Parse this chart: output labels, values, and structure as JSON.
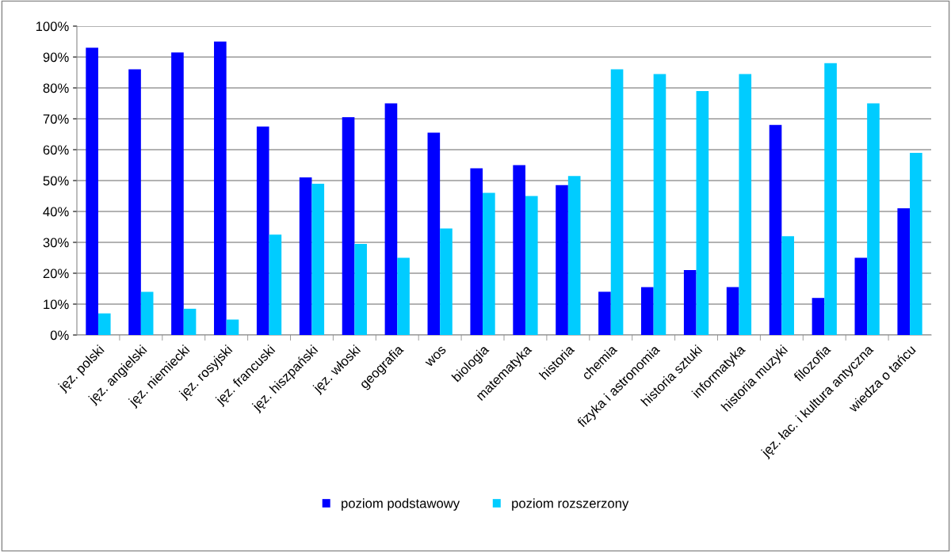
{
  "chart_data": {
    "type": "bar",
    "categories": [
      "jęz. polski",
      "jęz. angielski",
      "jęz. niemiecki",
      "jęz. rosyjski",
      "jęz. francuski",
      "jęz. hiszpański",
      "jęz. włoski",
      "geografia",
      "wos",
      "biologia",
      "matematyka",
      "historia",
      "chemia",
      "fizyka i astronomia",
      "historia sztuki",
      "informatyka",
      "historia muzyki",
      "filozofia",
      "jęz. łac. i kultura antyczna",
      "wiedza o tańcu"
    ],
    "series": [
      {
        "name": "poziom podstawowy",
        "color": "#0000ff",
        "values": [
          93,
          86,
          91.5,
          95,
          67.5,
          51,
          70.5,
          75,
          65.5,
          54,
          55,
          48.5,
          14,
          15.5,
          21,
          15.5,
          68,
          12,
          25,
          41
        ]
      },
      {
        "name": "poziom rozszerzony",
        "color": "#00ccff",
        "values": [
          7,
          14,
          8.5,
          5,
          32.5,
          49,
          29.5,
          25,
          34.5,
          46,
          45,
          51.5,
          86,
          84.5,
          79,
          84.5,
          32,
          88,
          75,
          59
        ]
      }
    ],
    "ylim": [
      0,
      100
    ],
    "yticks": [
      {
        "value": 0,
        "label": "0%"
      },
      {
        "value": 10,
        "label": "10%"
      },
      {
        "value": 20,
        "label": "20%"
      },
      {
        "value": 30,
        "label": "30%"
      },
      {
        "value": 40,
        "label": "40%"
      },
      {
        "value": 50,
        "label": "50%"
      },
      {
        "value": 60,
        "label": "60%"
      },
      {
        "value": 70,
        "label": "70%"
      },
      {
        "value": 80,
        "label": "80%"
      },
      {
        "value": 90,
        "label": "90%"
      },
      {
        "value": 100,
        "label": "100%"
      }
    ],
    "grid": "y",
    "legend": "bottom"
  }
}
